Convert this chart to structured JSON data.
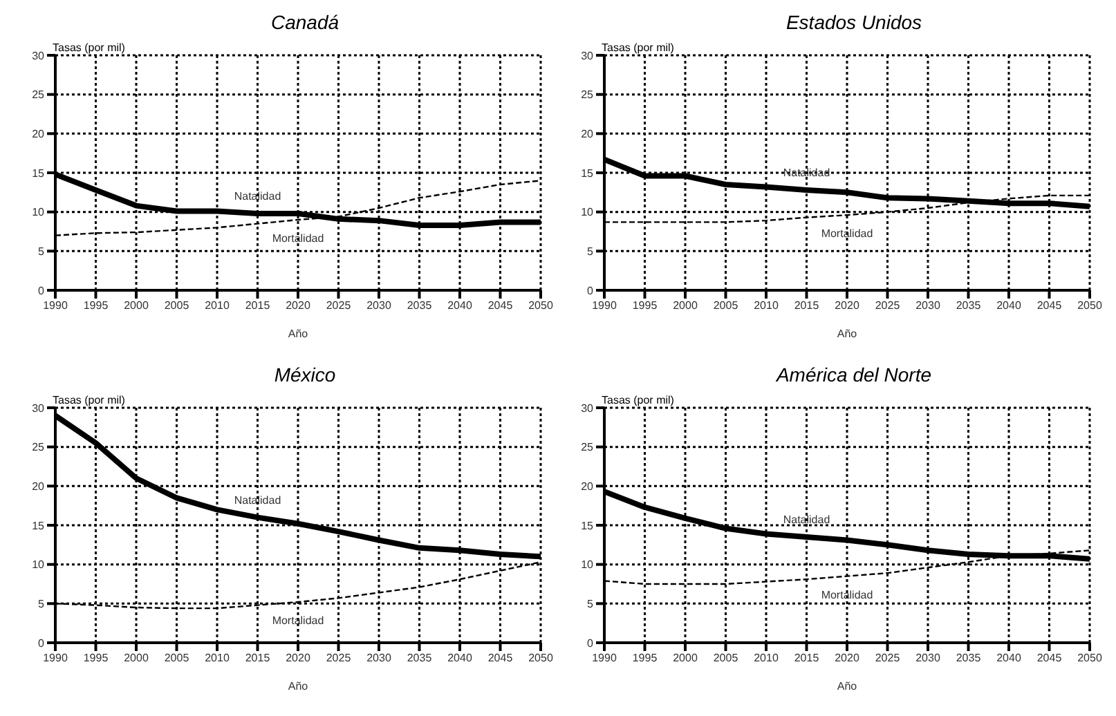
{
  "chart_data": [
    {
      "type": "line",
      "title": "Canadá",
      "ylabel": "Tasas (por mil)",
      "xlabel": "Año",
      "x": [
        1990,
        1995,
        2000,
        2005,
        2010,
        2015,
        2020,
        2025,
        2030,
        2035,
        2040,
        2045,
        2050
      ],
      "xlim": [
        1990,
        2050
      ],
      "xticks": [
        1990,
        1995,
        2000,
        2005,
        2010,
        2015,
        2020,
        2025,
        2030,
        2035,
        2040,
        2045,
        2050
      ],
      "ylim": [
        0,
        30
      ],
      "yticks": [
        0,
        5,
        10,
        15,
        20,
        25,
        30
      ],
      "grid": true,
      "marker": "none",
      "series": [
        {
          "name": "Natalidad",
          "color": "#000000",
          "line_style": "solid",
          "values": [
            14.8,
            12.8,
            10.8,
            10.1,
            10.1,
            9.8,
            9.8,
            9.1,
            8.9,
            8.3,
            8.3,
            8.7,
            8.7
          ]
        },
        {
          "name": "Mortalidad",
          "color": "#000000",
          "line_style": "dashed",
          "values": [
            7.0,
            7.3,
            7.4,
            7.7,
            8.0,
            8.5,
            9.0,
            9.4,
            10.5,
            11.8,
            12.6,
            13.5,
            14.0
          ]
        }
      ]
    },
    {
      "type": "line",
      "title": "Estados Unidos",
      "ylabel": "Tasas (por mil)",
      "xlabel": "Año",
      "x": [
        1990,
        1995,
        2000,
        2005,
        2010,
        2015,
        2020,
        2025,
        2030,
        2035,
        2040,
        2045,
        2050
      ],
      "xlim": [
        1990,
        2050
      ],
      "xticks": [
        1990,
        1995,
        2000,
        2005,
        2010,
        2015,
        2020,
        2025,
        2030,
        2035,
        2040,
        2045,
        2050
      ],
      "ylim": [
        0,
        30
      ],
      "yticks": [
        0,
        5,
        10,
        15,
        20,
        25,
        30
      ],
      "grid": true,
      "marker": "none",
      "series": [
        {
          "name": "Natalidad",
          "color": "#000000",
          "line_style": "solid",
          "values": [
            16.7,
            14.6,
            14.6,
            13.5,
            13.2,
            12.8,
            12.5,
            11.8,
            11.7,
            11.4,
            11.1,
            11.1,
            10.7
          ]
        },
        {
          "name": "Mortalidad",
          "color": "#000000",
          "line_style": "dashed",
          "values": [
            8.7,
            8.7,
            8.7,
            8.7,
            8.9,
            9.3,
            9.6,
            10.0,
            10.5,
            11.2,
            11.7,
            12.1,
            12.1
          ]
        }
      ]
    },
    {
      "type": "line",
      "title": "México",
      "ylabel": "Tasas (por mil)",
      "xlabel": "Año",
      "x": [
        1990,
        1995,
        2000,
        2005,
        2010,
        2015,
        2020,
        2025,
        2030,
        2035,
        2040,
        2045,
        2050
      ],
      "xlim": [
        1990,
        2050
      ],
      "xticks": [
        1990,
        1995,
        2000,
        2005,
        2010,
        2015,
        2020,
        2025,
        2030,
        2035,
        2040,
        2045,
        2050
      ],
      "ylim": [
        0,
        30
      ],
      "yticks": [
        0,
        5,
        10,
        15,
        20,
        25,
        30
      ],
      "grid": true,
      "marker": "none",
      "series": [
        {
          "name": "Natalidad",
          "color": "#000000",
          "line_style": "solid",
          "values": [
            29.0,
            25.5,
            21.0,
            18.5,
            17.0,
            16.0,
            15.2,
            14.2,
            13.1,
            12.1,
            11.8,
            11.3,
            11.0
          ]
        },
        {
          "name": "Mortalidad",
          "color": "#000000",
          "line_style": "dashed",
          "values": [
            5.0,
            4.8,
            4.5,
            4.4,
            4.4,
            4.8,
            5.2,
            5.7,
            6.4,
            7.1,
            8.1,
            9.2,
            10.3
          ]
        }
      ]
    },
    {
      "type": "line",
      "title": "América del Norte",
      "ylabel": "Tasas (por mil)",
      "xlabel": "Año",
      "x": [
        1990,
        1995,
        2000,
        2005,
        2010,
        2015,
        2020,
        2025,
        2030,
        2035,
        2040,
        2045,
        2050
      ],
      "xlim": [
        1990,
        2050
      ],
      "xticks": [
        1990,
        1995,
        2000,
        2005,
        2010,
        2015,
        2020,
        2025,
        2030,
        2035,
        2040,
        2045,
        2050
      ],
      "ylim": [
        0,
        30
      ],
      "yticks": [
        0,
        5,
        10,
        15,
        20,
        25,
        30
      ],
      "grid": true,
      "marker": "none",
      "series": [
        {
          "name": "Natalidad",
          "color": "#000000",
          "line_style": "solid",
          "values": [
            19.3,
            17.3,
            15.9,
            14.6,
            13.9,
            13.5,
            13.1,
            12.5,
            11.8,
            11.3,
            11.1,
            11.1,
            10.7
          ]
        },
        {
          "name": "Mortalidad",
          "color": "#000000",
          "line_style": "dashed",
          "values": [
            7.9,
            7.5,
            7.5,
            7.5,
            7.8,
            8.1,
            8.5,
            8.9,
            9.6,
            10.3,
            11.1,
            11.4,
            11.8
          ]
        }
      ]
    }
  ]
}
